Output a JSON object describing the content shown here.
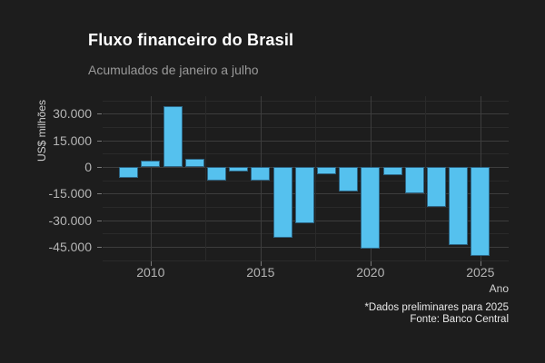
{
  "header": {
    "title": "Fluxo financeiro do Brasil",
    "subtitle": "Acumulados de janeiro a julho"
  },
  "footer": {
    "note": "*Dados preliminares para 2025",
    "source": "Fonte: Banco Central"
  },
  "chart_data": {
    "type": "bar",
    "title": "Fluxo financeiro do Brasil",
    "subtitle": "Acumulados de janeiro a julho",
    "xlabel": "Ano",
    "ylabel": "US$ milhões",
    "categories": [
      2009,
      2010,
      2011,
      2012,
      2013,
      2014,
      2015,
      2016,
      2017,
      2018,
      2019,
      2020,
      2021,
      2022,
      2023,
      2024,
      2025
    ],
    "values": [
      -6200,
      3500,
      34500,
      4400,
      -7700,
      -2700,
      -7700,
      -40000,
      -31500,
      -4100,
      -14000,
      -46000,
      -4600,
      -14800,
      -22600,
      -44000,
      -50200
    ],
    "ylim": [
      -53000,
      40000
    ],
    "yticks": [
      30000,
      15000,
      0,
      -15000,
      -30000,
      -45000
    ],
    "ytick_labels": [
      "30.000",
      "15.000",
      "0",
      "-15.000",
      "-30.000",
      "-45.000"
    ],
    "xticks": [
      2010,
      2015,
      2020,
      2025
    ],
    "xtick_labels": [
      "2010",
      "2015",
      "2020",
      "2025"
    ],
    "grid": "major and minor gridlines, dark theme",
    "legend": "none",
    "colors": {
      "background": "#1d1d1d",
      "bar_fill": "#55c1ee",
      "bar_border": "#2d6584",
      "grid_major": "#3d3d3d",
      "grid_minor": "#2a2a2a",
      "tick_label": "#b5b5b5",
      "title": "#ffffff",
      "subtitle": "#9a9a9a",
      "caption": "#e8e8e8"
    }
  }
}
